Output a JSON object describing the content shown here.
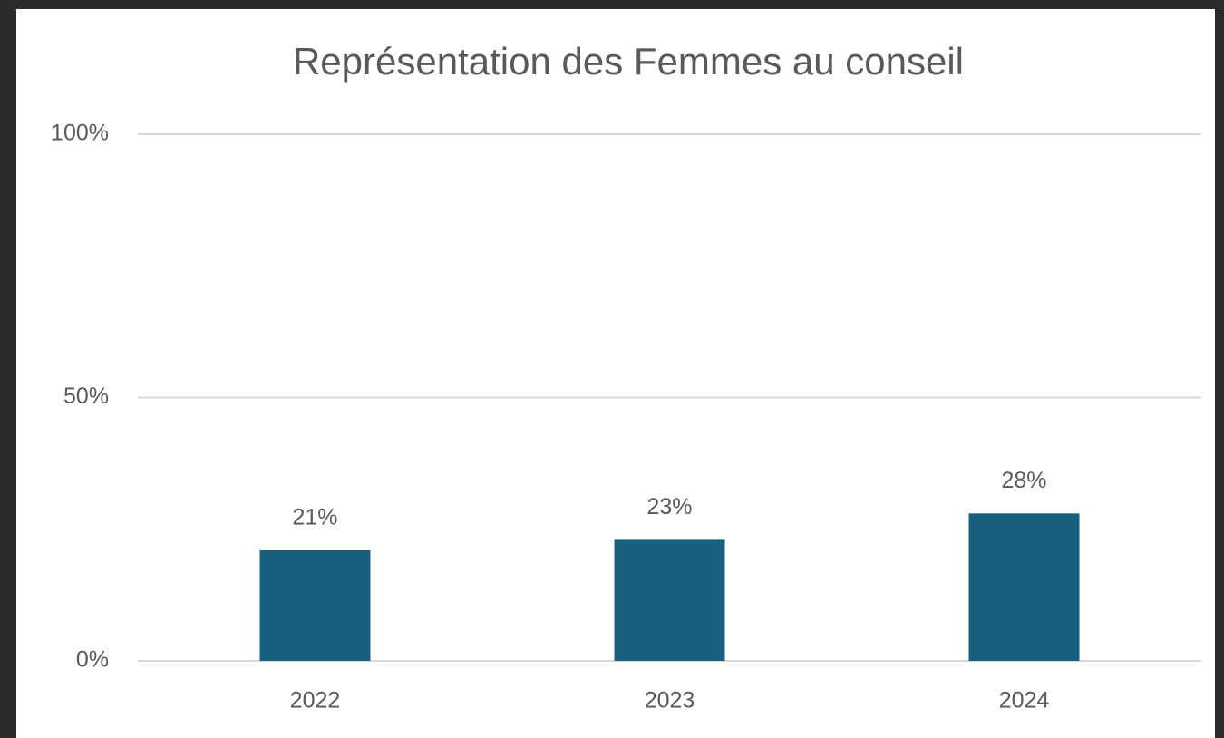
{
  "chart_data": {
    "type": "bar",
    "title": "Représentation des Femmes au conseil",
    "categories": [
      "2022",
      "2023",
      "2024"
    ],
    "values": [
      21,
      23,
      28
    ],
    "value_labels": [
      "21%",
      "23%",
      "28%"
    ],
    "color": "#17607f",
    "ylim": [
      0,
      100
    ],
    "yticks": [
      {
        "value": 0,
        "label": "0%"
      },
      {
        "value": 50,
        "label": "50%"
      },
      {
        "value": 100,
        "label": "100%"
      }
    ],
    "grid": true
  }
}
